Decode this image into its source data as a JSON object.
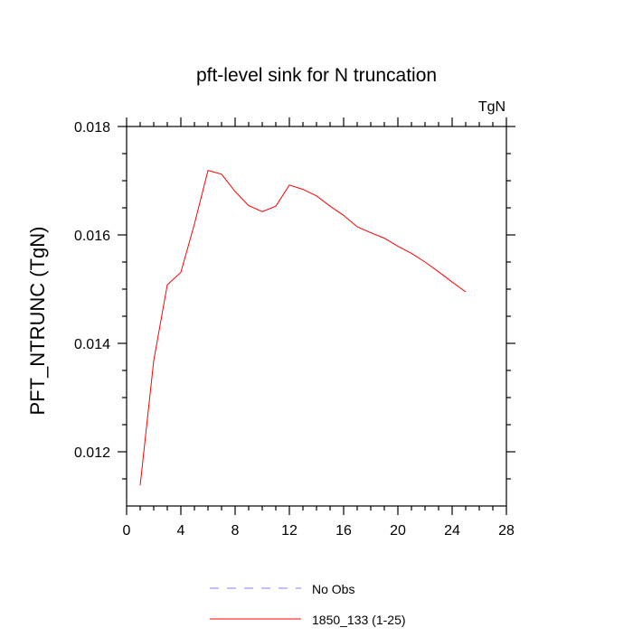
{
  "chart_data": {
    "type": "line",
    "title": "pft-level sink for N truncation",
    "units_label": "TgN",
    "ylabel": "PFT_NTRUNC  (TgN)",
    "xlabel": "",
    "xlim": [
      0,
      28
    ],
    "ylim": [
      0.011,
      0.018
    ],
    "x_ticks": [
      0,
      4,
      8,
      12,
      16,
      20,
      24,
      28
    ],
    "x_tick_labels": [
      "0",
      "4",
      "8",
      "12",
      "16",
      "20",
      "24",
      "28"
    ],
    "y_ticks": [
      0.012,
      0.014,
      0.016,
      0.018
    ],
    "y_tick_labels": [
      "0.012",
      "0.014",
      "0.016",
      "0.018"
    ],
    "grid": false,
    "legend_position": "bottom",
    "series": [
      {
        "name": "No Obs",
        "color": "#8080ff",
        "dashed": true,
        "x": [],
        "values": []
      },
      {
        "name": "1850_133 (1-25)",
        "color": "#ff0000",
        "dashed": false,
        "x": [
          1,
          2,
          3,
          4,
          5,
          6,
          7,
          8,
          9,
          10,
          11,
          12,
          13,
          14,
          15,
          16,
          17,
          18,
          19,
          20,
          21,
          22,
          23,
          24,
          25
        ],
        "values": [
          0.01138,
          0.01368,
          0.01508,
          0.01531,
          0.0162,
          0.01719,
          0.01712,
          0.0168,
          0.01654,
          0.01643,
          0.01653,
          0.01692,
          0.01684,
          0.01672,
          0.01653,
          0.01636,
          0.01615,
          0.01604,
          0.01594,
          0.01579,
          0.01566,
          0.0155,
          0.01532,
          0.01513,
          0.01495
        ]
      }
    ]
  }
}
